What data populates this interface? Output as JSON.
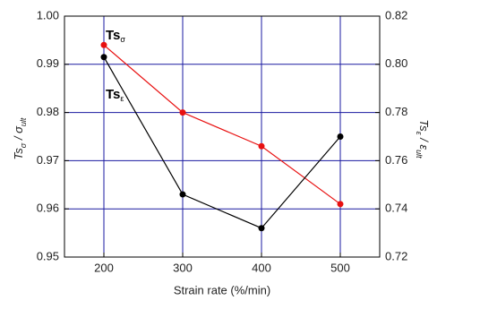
{
  "chart_data": {
    "type": "line",
    "x_label": "Strain rate (%/min)",
    "y_label": [
      {
        "text": "Ts"
      },
      {
        "sub": "σ"
      },
      {
        "text": " / "
      },
      {
        "text": "σ"
      },
      {
        "sub": "ult"
      }
    ],
    "y2_label": [
      {
        "text": "Ts"
      },
      {
        "sub": "ε"
      },
      {
        "text": " / "
      },
      {
        "text": "ε"
      },
      {
        "sub": "ult"
      }
    ],
    "x": [
      200,
      300,
      400,
      500
    ],
    "xlim": [
      150,
      550
    ],
    "xticks": [
      200,
      300,
      400,
      500
    ],
    "ylim": [
      0.95,
      1.0
    ],
    "yticks": [
      0.95,
      0.96,
      0.97,
      0.98,
      0.99,
      {
        "value": 1.0,
        "label": "1.00"
      }
    ],
    "y2lim": [
      0.72,
      0.82
    ],
    "y2ticks": [
      0.72,
      0.74,
      0.76,
      0.78,
      {
        "value": 0.8,
        "label": "0.80"
      },
      0.82
    ],
    "grid": true,
    "grid_color": "#1a1aa0",
    "series": [
      {
        "color": "#e81010",
        "values": [
          0.994,
          0.98,
          0.973,
          0.961
        ]
      },
      {
        "color": "#000000",
        "axis": "y2",
        "values": [
          0.803,
          0.746,
          0.732,
          0.77
        ]
      }
    ],
    "annotations": [
      {
        "text": "Ts",
        "sub": "σ"
      },
      {
        "text": "Ts",
        "sub": "ε"
      }
    ]
  }
}
